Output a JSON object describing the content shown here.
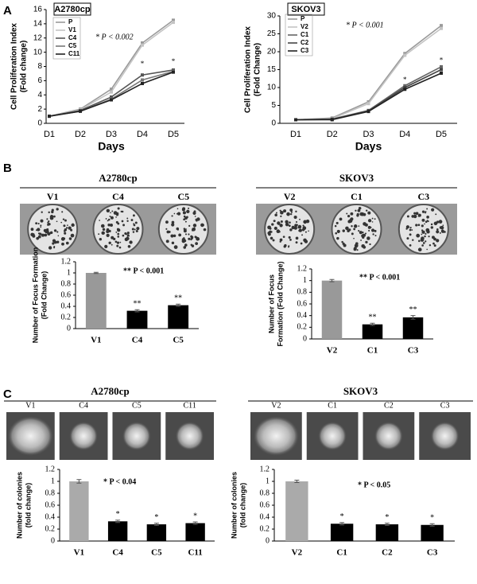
{
  "panel_labels": [
    "A",
    "B",
    "C"
  ],
  "images": [
    {
      "title": "A2780cp",
      "labels": [
        "V1",
        "C4",
        "C5"
      ]
    },
    {
      "title": "SKOV3",
      "labels": [
        "V2",
        "C1",
        "C3"
      ]
    },
    {
      "title": "A2780cp",
      "labels": [
        "V1",
        "C4",
        "C5",
        "C11"
      ]
    },
    {
      "title": "SKOV3",
      "labels": [
        "V2",
        "C1",
        "C2",
        "C3"
      ]
    }
  ],
  "chart_data": [
    {
      "type": "line",
      "title": "A2780cp",
      "annotation": "* P < 0.002",
      "ylabel": [
        "Cell Proliferation Index",
        "(Fold change)"
      ],
      "xlabel": "Days",
      "categories": [
        "D1",
        "D2",
        "D3",
        "D4",
        "D5"
      ],
      "series": [
        {
          "name": "P",
          "color": "#9a9a9a",
          "values": [
            1,
            2,
            4.8,
            11.3,
            14.5
          ]
        },
        {
          "name": "V1",
          "color": "#c4c4c4",
          "values": [
            1,
            1.9,
            4.4,
            11,
            14.2
          ]
        },
        {
          "name": "C4",
          "color": "#555555",
          "values": [
            1,
            1.8,
            3.7,
            6.8,
            7.5
          ]
        },
        {
          "name": "C5",
          "color": "#777777",
          "values": [
            1,
            1.7,
            3.4,
            6.1,
            7.3
          ]
        },
        {
          "name": "C11",
          "color": "#222222",
          "values": [
            1,
            1.7,
            3.3,
            5.6,
            7.2
          ]
        }
      ],
      "stars": [
        {
          "category": "D4",
          "value": 8.3,
          "label": "*"
        },
        {
          "category": "D5",
          "value": 8.6,
          "label": "*"
        }
      ],
      "ylim": [
        0,
        16
      ],
      "yticks": [
        0,
        2,
        4,
        6,
        8,
        10,
        12,
        14,
        16
      ]
    },
    {
      "type": "line",
      "title": "SKOV3",
      "annotation": "* P < 0.001",
      "ylabel": [
        "Cell Proliferation Index",
        "(Fold Change)"
      ],
      "xlabel": "Days",
      "categories": [
        "D1",
        "D2",
        "D3",
        "D4",
        "D5"
      ],
      "series": [
        {
          "name": "P",
          "color": "#9a9a9a",
          "values": [
            1,
            1.5,
            6,
            19.5,
            27.3
          ]
        },
        {
          "name": "V2",
          "color": "#c4c4c4",
          "values": [
            1,
            1.3,
            5.5,
            19,
            26.5
          ]
        },
        {
          "name": "C1",
          "color": "#666666",
          "values": [
            1,
            1.2,
            3.6,
            10.5,
            15.8
          ]
        },
        {
          "name": "C2",
          "color": "#444444",
          "values": [
            1,
            1.1,
            3.5,
            10,
            15
          ]
        },
        {
          "name": "C3",
          "color": "#222222",
          "values": [
            1,
            1,
            3.3,
            9.5,
            14
          ]
        }
      ],
      "stars": [
        {
          "category": "D4",
          "value": 12,
          "label": "*"
        },
        {
          "category": "D5",
          "value": 17.5,
          "label": "*"
        }
      ],
      "ylim": [
        0,
        30
      ],
      "yticks": [
        0,
        5,
        10,
        15,
        20,
        25,
        30
      ]
    },
    {
      "type": "bar",
      "annotation": "** P < 0.001",
      "ylabel": [
        "Number of Focus Formation",
        "(Fold Change)"
      ],
      "categories": [
        "V1",
        "C4",
        "C5"
      ],
      "values": [
        1,
        0.32,
        0.42
      ],
      "errors": [
        0.01,
        0.02,
        0.02
      ],
      "colors": [
        "#999999",
        "#000000",
        "#000000"
      ],
      "bar_labels": [
        null,
        "**",
        "**"
      ],
      "ylim": [
        0,
        1.2
      ],
      "yticks": [
        0,
        0.2,
        0.4,
        0.6,
        0.8,
        1,
        1.2
      ]
    },
    {
      "type": "bar",
      "annotation": "** P < 0.001",
      "ylabel": [
        "Number of Focus",
        "Formation (Fold Change)"
      ],
      "categories": [
        "V2",
        "C1",
        "C3"
      ],
      "values": [
        1,
        0.25,
        0.37
      ],
      "errors": [
        0.02,
        0.02,
        0.03
      ],
      "colors": [
        "#999999",
        "#000000",
        "#000000"
      ],
      "bar_labels": [
        null,
        "**",
        "**"
      ],
      "ylim": [
        0,
        1.2
      ],
      "yticks": [
        0,
        0.2,
        0.4,
        0.6,
        0.8,
        1,
        1.2
      ]
    },
    {
      "type": "bar",
      "annotation": "* P < 0.04",
      "ylabel": [
        "Number of colonies",
        "(fold change)"
      ],
      "categories": [
        "V1",
        "C4",
        "C5",
        "C11"
      ],
      "values": [
        1,
        0.33,
        0.28,
        0.3
      ],
      "errors": [
        0.03,
        0.02,
        0.02,
        0.02
      ],
      "colors": [
        "#aaaaaa",
        "#000000",
        "#000000",
        "#000000"
      ],
      "bar_labels": [
        null,
        "*",
        "*",
        "*"
      ],
      "ylim": [
        0,
        1.2
      ],
      "yticks": [
        0,
        0.2,
        0.4,
        0.6,
        0.8,
        1,
        1.2
      ]
    },
    {
      "type": "bar",
      "annotation": "* P < 0.05",
      "ylabel": [
        "Number of colonies",
        "(fold change)"
      ],
      "categories": [
        "V2",
        "C1",
        "C2",
        "C3"
      ],
      "values": [
        1,
        0.29,
        0.28,
        0.27
      ],
      "errors": [
        0.02,
        0.02,
        0.02,
        0.02
      ],
      "colors": [
        "#aaaaaa",
        "#000000",
        "#000000",
        "#000000"
      ],
      "bar_labels": [
        null,
        "*",
        "*",
        "*"
      ],
      "ylim": [
        0,
        1.2
      ],
      "yticks": [
        0,
        0.2,
        0.4,
        0.6,
        0.8,
        1,
        1.2
      ]
    }
  ]
}
